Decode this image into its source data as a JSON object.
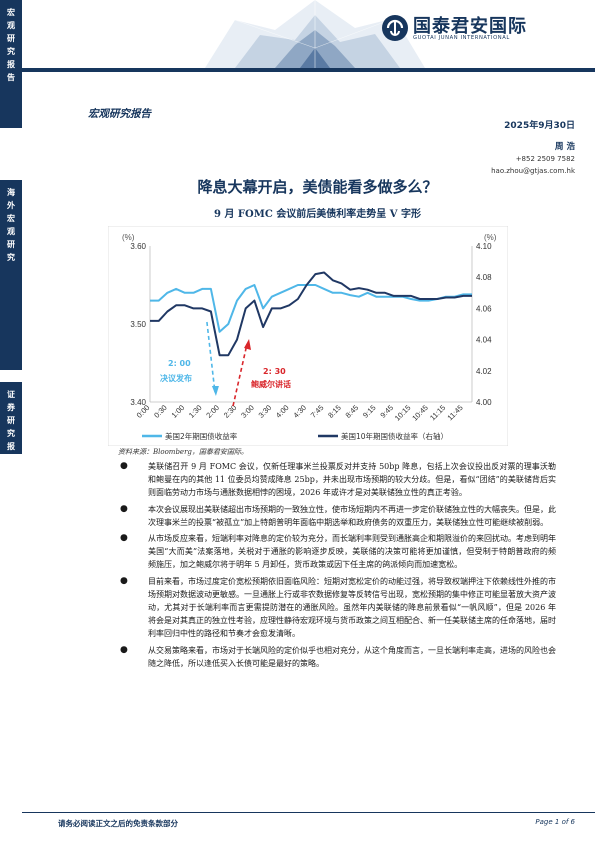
{
  "sidebar": {
    "block1": [
      "宏",
      "观",
      "研",
      "究",
      "报",
      "告"
    ],
    "block2": [
      "海",
      "外",
      "宏",
      "观",
      "研",
      "究"
    ],
    "block3": [
      "证",
      "券",
      "研",
      "究",
      "报",
      "告"
    ]
  },
  "header": {
    "logo_cn": "国泰君安国际",
    "logo_en": "GUOTAI JUNAN INTERNATIONAL",
    "brand_color": "#17365d"
  },
  "report_type": "宏观研究报告",
  "date": "2025年9月30日",
  "author": {
    "name": "周 浩",
    "phone": "+852 2509 7582",
    "email": "hao.zhou@gtjas.com.hk"
  },
  "title": "降息大幕开启，美债能看多做多么？",
  "subtitle": "9 月 FOMC 会议前后美债利率走势呈 V 字形",
  "chart_data": {
    "type": "line",
    "x": [
      "0:00",
      "0:15",
      "0:30",
      "0:45",
      "1:00",
      "1:15",
      "1:30",
      "1:45",
      "2:00",
      "2:15",
      "2:30",
      "2:45",
      "3:00",
      "3:15",
      "3:30",
      "3:45",
      "4:00",
      "4:15",
      "4:30",
      "4:45",
      "7:45",
      "8:00",
      "8:15",
      "8:30",
      "8:45",
      "9:00",
      "9:15",
      "9:30",
      "9:45",
      "10:00",
      "10:15",
      "10:30",
      "10:45",
      "11:00",
      "11:15",
      "11:30",
      "11:45",
      "12:00"
    ],
    "x_tick_labels": [
      "0:00",
      "0:30",
      "1:00",
      "1:30",
      "2:00",
      "2:30",
      "3:00",
      "3:30",
      "4:00",
      "4:30",
      "7:45",
      "8:15",
      "8:45",
      "9:15",
      "9:45",
      "10:15",
      "10:45",
      "11:15",
      "11:45"
    ],
    "series": [
      {
        "name": "美国2年期国债收益率",
        "axis": "left",
        "color": "#4fb7e8",
        "values": [
          3.53,
          3.53,
          3.54,
          3.545,
          3.54,
          3.54,
          3.545,
          3.545,
          3.49,
          3.5,
          3.53,
          3.545,
          3.55,
          3.52,
          3.535,
          3.54,
          3.545,
          3.55,
          3.55,
          3.55,
          3.545,
          3.54,
          3.54,
          3.537,
          3.535,
          3.54,
          3.535,
          3.535,
          3.535,
          3.535,
          3.532,
          3.53,
          3.53,
          3.532,
          3.535,
          3.535,
          3.538,
          3.538
        ]
      },
      {
        "name": "美国10年期国债收益率（右轴）",
        "axis": "right",
        "color": "#203864",
        "values": [
          4.052,
          4.052,
          4.058,
          4.062,
          4.062,
          4.06,
          4.06,
          4.058,
          4.03,
          4.03,
          4.04,
          4.06,
          4.065,
          4.048,
          4.06,
          4.06,
          4.062,
          4.066,
          4.075,
          4.082,
          4.083,
          4.078,
          4.076,
          4.072,
          4.073,
          4.072,
          4.07,
          4.07,
          4.068,
          4.068,
          4.068,
          4.066,
          4.066,
          4.066,
          4.067,
          4.067,
          4.068,
          4.068
        ]
      }
    ],
    "left_axis": {
      "label": "(%)",
      "ylim": [
        3.4,
        3.6
      ],
      "ticks": [
        "3.40",
        "3.50",
        "3.60"
      ]
    },
    "right_axis": {
      "label": "(%)",
      "ylim": [
        4.0,
        4.1
      ],
      "ticks": [
        "4.00",
        "4.02",
        "4.04",
        "4.06",
        "4.08",
        "4.10"
      ]
    },
    "annotations": [
      {
        "time": "2: 00",
        "text": "决议发布",
        "color": "#4fb7e8"
      },
      {
        "time": "2: 30",
        "text": "鲍威尔讲话",
        "color": "#d9262b"
      }
    ],
    "legend": [
      "美国2年期国债收益率",
      "美国10年期国债收益率（右轴）"
    ],
    "legend_placement": "bottom"
  },
  "chart_source": "资料来源：Bloomberg，国泰君安国际。",
  "bullets": [
    "美联储召开 9 月 FOMC 会议，仅新任理事米兰投票反对并支持 50bp 降息，包括上次会议投出反对票的理事沃勒和鲍曼在内的其他 11 位委员均赞成降息 25bp，并未出现市场预期的较大分歧。但是，看似“团结”的美联储背后实则面临劳动力市场与通胀数据相悖的困境，2026 年或许才是对美联储独立性的真正考验。",
    "本次会议展现出美联储超出市场预期的一致独立性，使市场短期内不再进一步定价联储独立性的大幅丧失。但是，此次理事米兰的投票“被孤立”加上特朗普明年面临中期选举和政府债务的双重压力，美联储独立性可能继续被削弱。",
    "从市场反应来看，短端利率对降息的定价较为充分，而长端利率则受到通胀高企和期限溢价的来回扰动。考虑到明年美国“大而美”法案落地，关税对于通胀的影响逐步反映，美联储的决策可能将更加谨慎，但受制于特朗普政府的频频施压，加之鲍威尔将于明年 5 月卸任，货币政策或因下任主席的鸽派倾向而加速宽松。",
    "目前来看，市场过度定价宽松预期依旧面临风险：短期对宽松定价的动能过强，将导致权端押注下依赖线性外推的市场预期对数据波动更敏感。一旦通胀上行或非农数据修复等反转信号出现，宽松预期的集中修正可能显著放大资产波动，尤其对于长端利率而言更需提防潜在的通胀风险。虽然年内美联储的降息前景看似“一帆风顺”，但是 2026 年将会是对其真正的独立性考验，应理性静待宏观环境与货币政策之间互相配合、新一任美联储主席的任命落地，届时利率回归中性的路径和节奏才会愈发清晰。",
    "从交易策略来看，市场对于长端风险的定价似乎也相对充分，从这个角度而言，一旦长端利率走高，进场的风险也会随之降低，所以逢低买入长债可能是最好的策略。"
  ],
  "footer": {
    "disclaimer": "请务必阅读正文之后的免责条款部分",
    "page": "Page 1 of 6"
  }
}
